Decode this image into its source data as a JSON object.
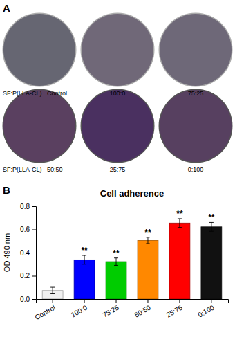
{
  "chart_data": {
    "type": "bar",
    "title": "Cell adherence",
    "ylabel": "OD 490 nm",
    "categories": [
      "Control",
      "100:0",
      "75:25",
      "50:50",
      "25:75",
      "0:100"
    ],
    "values": [
      0.073,
      0.338,
      0.322,
      0.505,
      0.655,
      0.622
    ],
    "errors": [
      0.028,
      0.038,
      0.032,
      0.028,
      0.038,
      0.038
    ],
    "significance": [
      null,
      "**",
      "**",
      "**",
      "**",
      "**"
    ],
    "colors": [
      "#f0f0f0",
      "#0000ff",
      "#00cc00",
      "#ff8800",
      "#ff0000",
      "#111111"
    ],
    "ylim": [
      0.0,
      0.8
    ],
    "yticks": [
      {
        "value": 0.0,
        "label": "0.0"
      },
      0.2,
      0.4,
      0.6,
      0.8
    ],
    "grid": false,
    "annotations": [
      "A",
      "SF:P(LLA-CL)",
      "Control",
      "100:0",
      "75:25",
      "SF:P(LLA-CL)",
      "50:50",
      "25:75",
      "0:100",
      "B"
    ]
  }
}
